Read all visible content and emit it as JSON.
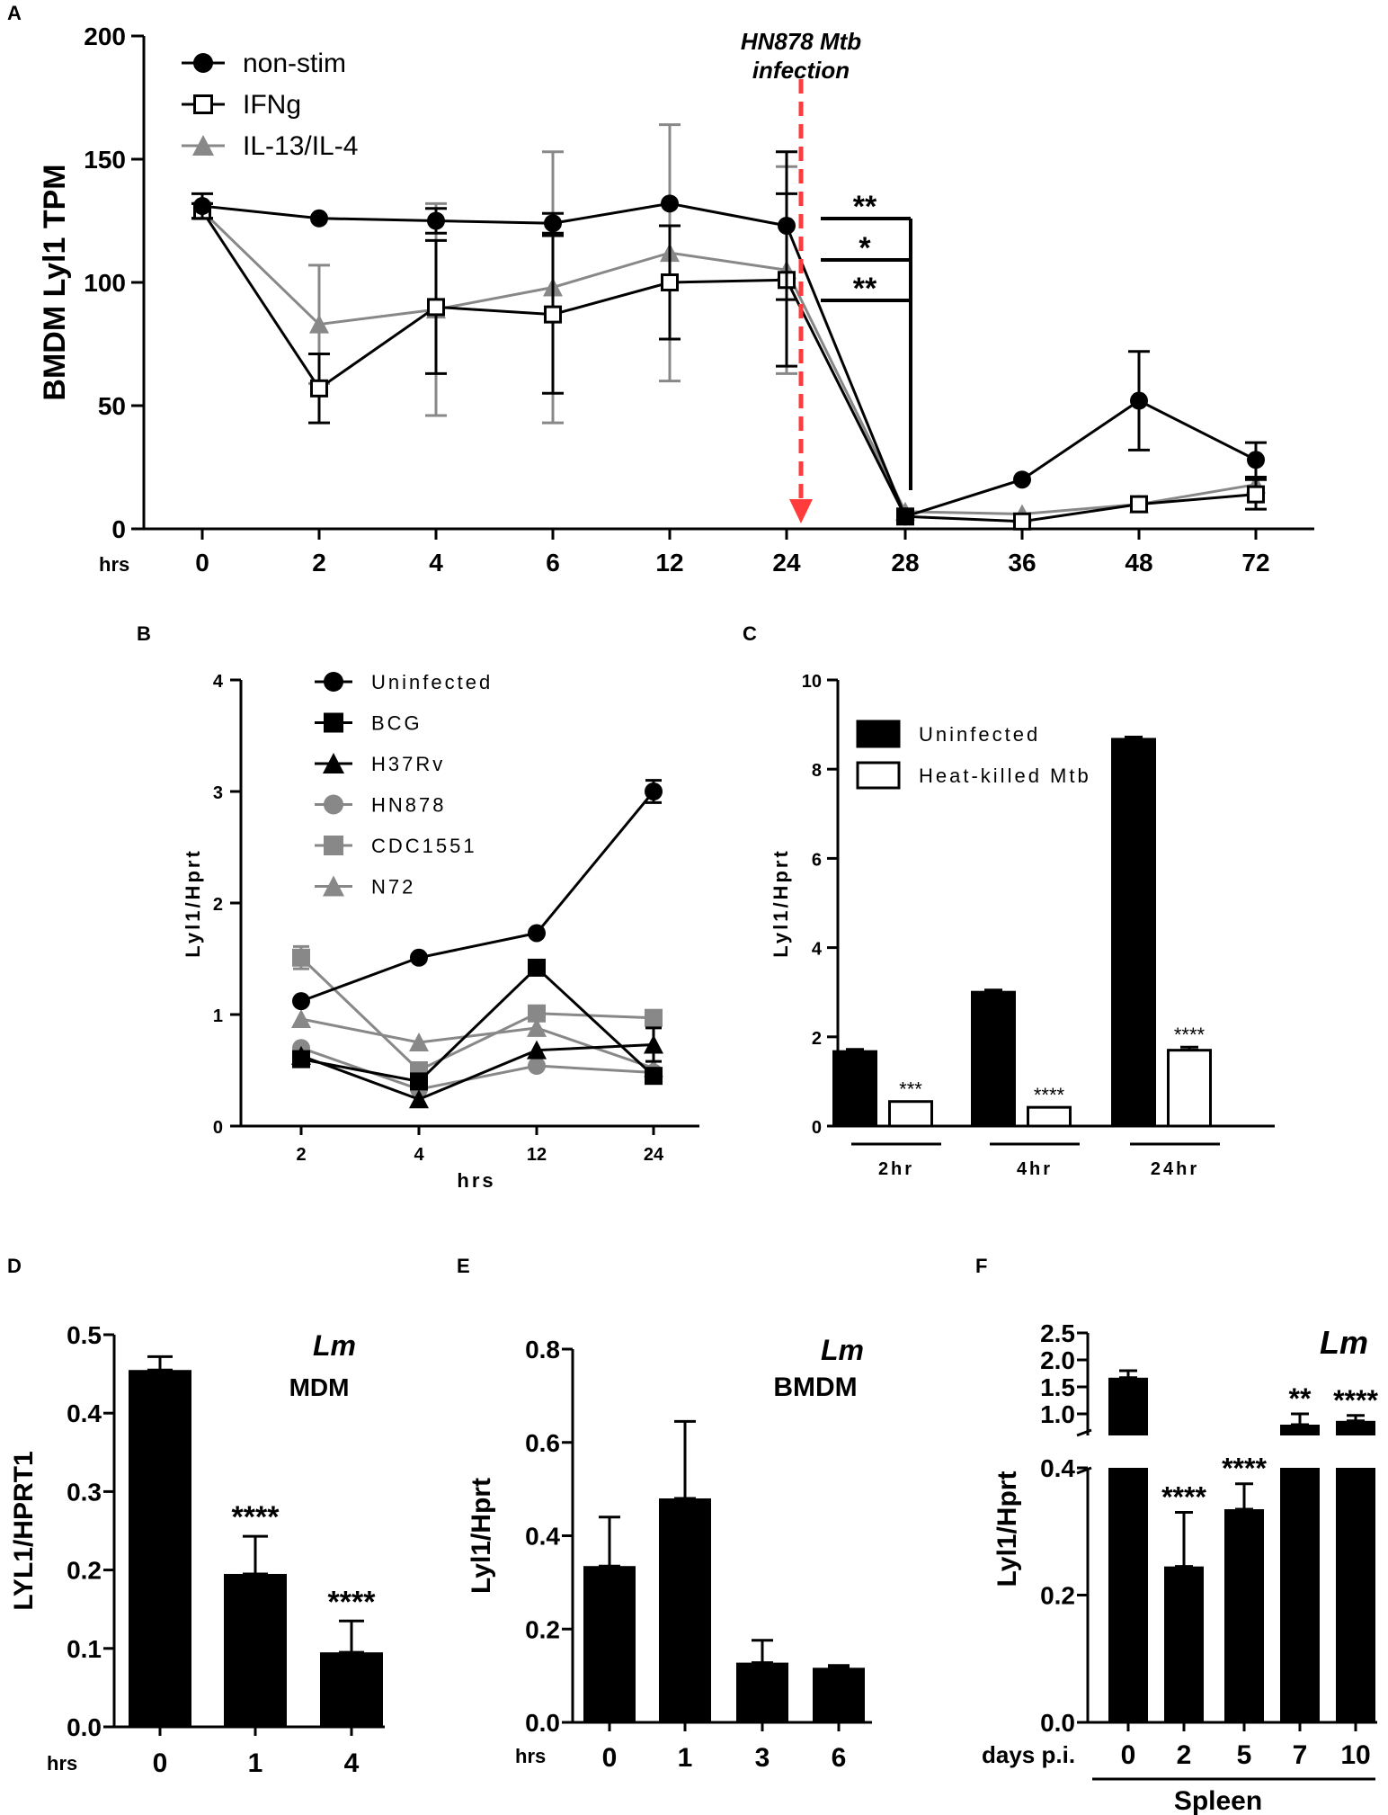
{
  "colors": {
    "black": "#000000",
    "gray": "#888888",
    "red": "#ff3b3b"
  },
  "chart_data": [
    {
      "id": "A",
      "type": "line",
      "panel_label": "A",
      "ylabel": "BMDM Lyl1 TPM",
      "xlabel": "hrs",
      "categories": [
        "0",
        "2",
        "4",
        "6",
        "12",
        "24",
        "28",
        "36",
        "48",
        "72"
      ],
      "ylim": [
        0,
        200
      ],
      "yticks": [
        "0",
        "50",
        "100",
        "150",
        "200"
      ],
      "annotation": {
        "line1": "HN878 Mtb",
        "line2": "infection"
      },
      "sig": [
        "**",
        "*",
        "**"
      ],
      "series": [
        {
          "name": "non-stim",
          "marker": "circle",
          "color": "#000000",
          "values": [
            131,
            126,
            125,
            124,
            132,
            123,
            5,
            20,
            52,
            28
          ],
          "errors": [
            5,
            0,
            5,
            4,
            0,
            30,
            0,
            0,
            20,
            7
          ]
        },
        {
          "name": "IFNg",
          "marker": "square-open",
          "color": "#000000",
          "values": [
            129,
            57,
            90,
            87,
            100,
            101,
            5,
            3,
            10,
            14
          ],
          "errors": [
            3,
            14,
            27,
            32,
            23,
            35,
            0,
            0,
            0,
            6
          ]
        },
        {
          "name": "IL-13/IL-4",
          "marker": "triangle",
          "color": "#888888",
          "values": [
            129,
            83,
            89,
            98,
            112,
            105,
            7,
            6,
            10,
            18
          ],
          "errors": [
            3,
            24,
            43,
            55,
            52,
            42,
            0,
            0,
            0,
            0
          ]
        }
      ]
    },
    {
      "id": "B",
      "type": "line",
      "panel_label": "B",
      "ylabel": "Lyl1/Hprt",
      "xlabel": "hrs",
      "categories": [
        "2",
        "4",
        "12",
        "24"
      ],
      "ylim": [
        0,
        4
      ],
      "yticks": [
        "0",
        "1",
        "2",
        "3",
        "4"
      ],
      "series": [
        {
          "name": "Uninfected",
          "marker": "circle",
          "color": "#000000",
          "values": [
            1.12,
            1.51,
            1.73,
            3.0
          ],
          "errors": [
            0,
            0,
            0,
            0.1
          ]
        },
        {
          "name": "BCG",
          "marker": "square",
          "color": "#000000",
          "values": [
            0.6,
            0.4,
            1.42,
            0.45
          ],
          "errors": [
            0,
            0,
            0,
            0
          ]
        },
        {
          "name": "H37Rv",
          "marker": "triangle",
          "color": "#000000",
          "values": [
            0.63,
            0.24,
            0.68,
            0.73
          ],
          "errors": [
            0,
            0,
            0,
            0.15
          ]
        },
        {
          "name": "HN878",
          "marker": "circle",
          "color": "#888888",
          "values": [
            0.7,
            0.33,
            0.54,
            0.48
          ],
          "errors": [
            0,
            0,
            0,
            0
          ]
        },
        {
          "name": "CDC1551",
          "marker": "square",
          "color": "#888888",
          "values": [
            1.51,
            0.5,
            1.01,
            0.97
          ],
          "errors": [
            0.1,
            0,
            0,
            0
          ]
        },
        {
          "name": "N72",
          "marker": "triangle",
          "color": "#888888",
          "values": [
            0.96,
            0.75,
            0.88,
            0.52
          ],
          "errors": [
            0,
            0,
            0,
            0
          ]
        }
      ]
    },
    {
      "id": "C",
      "type": "bar",
      "panel_label": "C",
      "ylabel": "Lyl1/Hprt",
      "categories": [
        "2hr",
        "4hr",
        "24hr"
      ],
      "ylim": [
        0,
        10
      ],
      "yticks": [
        "0",
        "2",
        "4",
        "6",
        "8",
        "10"
      ],
      "series": [
        {
          "name": "Uninfected",
          "fill": "#000000",
          "values": [
            1.67,
            3.0,
            8.67
          ],
          "errors": [
            0.05,
            0.05,
            0.05
          ]
        },
        {
          "name": "Heat-killed Mtb",
          "fill": "#ffffff",
          "values": [
            0.55,
            0.42,
            1.7
          ],
          "errors": [
            0,
            0,
            0.07
          ]
        }
      ],
      "sig": [
        "***",
        "****",
        "****"
      ]
    },
    {
      "id": "D",
      "type": "bar",
      "panel_label": "D",
      "ylabel": "LYL1/HPRT1",
      "xlabel": "hrs",
      "title": "Lm",
      "subtitle": "MDM",
      "categories": [
        "0",
        "1",
        "4"
      ],
      "ylim": [
        0,
        0.5
      ],
      "yticks": [
        "0.0",
        "0.1",
        "0.2",
        "0.3",
        "0.4",
        "0.5"
      ],
      "values": [
        0.455,
        0.195,
        0.095
      ],
      "errors": [
        0.017,
        0.048,
        0.04
      ],
      "sig": [
        "",
        "****",
        "****"
      ]
    },
    {
      "id": "E",
      "type": "bar",
      "panel_label": "E",
      "ylabel": "Lyl1/Hprt",
      "xlabel": "hrs",
      "title": "Lm",
      "subtitle": "BMDM",
      "categories": [
        "0",
        "1",
        "3",
        "6"
      ],
      "ylim": [
        0,
        0.8
      ],
      "yticks": [
        "0.0",
        "0.2",
        "0.4",
        "0.6",
        "0.8"
      ],
      "values": [
        0.335,
        0.48,
        0.128,
        0.117
      ],
      "errors": [
        0.105,
        0.165,
        0.048,
        0.005
      ]
    },
    {
      "id": "F",
      "type": "bar",
      "panel_label": "F",
      "ylabel": "Lyl1/Hprt",
      "xlabel": "days p.i.",
      "group_label": "Spleen",
      "title": "Lm",
      "categories": [
        "0",
        "2",
        "5",
        "7",
        "10"
      ],
      "ylim_lower": [
        0,
        0.4
      ],
      "ylim_upper": [
        0.5,
        2.5
      ],
      "yticks_lower": [
        "0.0",
        "0.2",
        "0.4"
      ],
      "yticks_upper": [
        "1.0",
        "1.5",
        "2.0",
        "2.5"
      ],
      "values": [
        1.67,
        0.245,
        0.335,
        0.8,
        0.87
      ],
      "errors": [
        0.13,
        0.085,
        0.04,
        0.2,
        0.1
      ],
      "sig": [
        "",
        "****",
        "****",
        "**",
        "****"
      ]
    }
  ]
}
